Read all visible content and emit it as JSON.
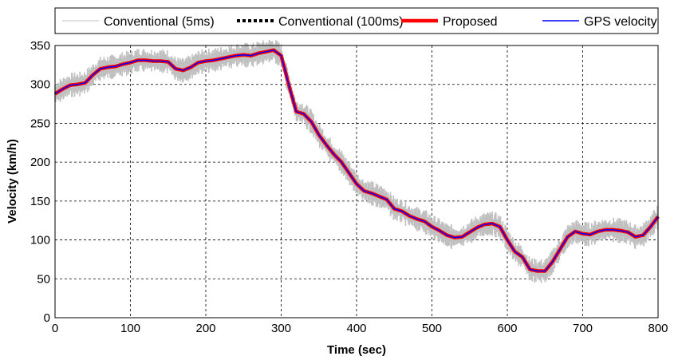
{
  "chart_data": {
    "type": "line",
    "title": "",
    "xlabel": "Time (sec)",
    "ylabel": "Velocity (km/h)",
    "xlim": [
      0,
      800
    ],
    "ylim": [
      0,
      350
    ],
    "x_ticks": [
      "0",
      "100",
      "200",
      "300",
      "400",
      "500",
      "600",
      "700",
      "800"
    ],
    "y_ticks": [
      "0",
      "50",
      "100",
      "150",
      "200",
      "250",
      "300",
      "350"
    ],
    "x_tick_values": [
      0,
      100,
      200,
      300,
      400,
      500,
      600,
      700,
      800
    ],
    "y_tick_values": [
      0,
      50,
      100,
      150,
      200,
      250,
      300,
      350
    ],
    "grid": true,
    "legend_position": "top",
    "x": [
      0,
      10,
      20,
      30,
      40,
      50,
      60,
      70,
      80,
      90,
      100,
      110,
      120,
      130,
      140,
      150,
      160,
      170,
      180,
      190,
      200,
      210,
      220,
      230,
      240,
      250,
      260,
      270,
      280,
      290,
      300,
      310,
      320,
      330,
      340,
      350,
      360,
      370,
      380,
      390,
      400,
      410,
      420,
      430,
      440,
      450,
      460,
      470,
      480,
      490,
      500,
      510,
      520,
      530,
      540,
      550,
      560,
      570,
      580,
      590,
      600,
      610,
      620,
      630,
      640,
      650,
      660,
      670,
      680,
      690,
      700,
      710,
      720,
      730,
      740,
      750,
      760,
      770,
      780,
      790,
      800
    ],
    "series": [
      {
        "name": "Conventional (5ms)",
        "color": "#c0c0c0",
        "style": "thin-noisy",
        "values": [
          288,
          294,
          299,
          300,
          302,
          312,
          320,
          322,
          323,
          326,
          328,
          331,
          331,
          330,
          330,
          329,
          320,
          318,
          322,
          328,
          330,
          331,
          333,
          335,
          337,
          338,
          337,
          340,
          342,
          344,
          337,
          300,
          265,
          262,
          252,
          235,
          222,
          210,
          200,
          186,
          172,
          163,
          160,
          156,
          152,
          140,
          137,
          131,
          127,
          124,
          117,
          112,
          106,
          103,
          104,
          110,
          116,
          120,
          121,
          117,
          100,
          85,
          78,
          62,
          60,
          60,
          72,
          88,
          104,
          111,
          108,
          107,
          111,
          113,
          113,
          112,
          110,
          104,
          106,
          117,
          130
        ]
      },
      {
        "name": "Conventional (100ms)",
        "color": "#000000",
        "style": "dotted",
        "values": [
          288,
          294,
          299,
          300,
          302,
          312,
          320,
          322,
          323,
          326,
          328,
          331,
          331,
          330,
          330,
          329,
          320,
          318,
          322,
          328,
          330,
          331,
          333,
          335,
          337,
          338,
          337,
          340,
          342,
          344,
          337,
          300,
          265,
          262,
          252,
          235,
          222,
          210,
          200,
          186,
          172,
          163,
          160,
          156,
          152,
          140,
          137,
          131,
          127,
          124,
          117,
          112,
          106,
          103,
          104,
          110,
          116,
          120,
          121,
          117,
          100,
          85,
          78,
          62,
          60,
          60,
          72,
          88,
          104,
          111,
          108,
          107,
          111,
          113,
          113,
          112,
          110,
          104,
          106,
          117,
          130
        ]
      },
      {
        "name": "Proposed",
        "color": "#ff0000",
        "style": "thick",
        "values": [
          288,
          294,
          299,
          300,
          302,
          312,
          320,
          322,
          323,
          326,
          328,
          331,
          331,
          330,
          330,
          329,
          320,
          318,
          322,
          328,
          330,
          331,
          333,
          335,
          337,
          338,
          337,
          340,
          342,
          344,
          337,
          300,
          265,
          262,
          252,
          235,
          222,
          210,
          200,
          186,
          172,
          163,
          160,
          156,
          152,
          140,
          137,
          131,
          127,
          124,
          117,
          112,
          106,
          103,
          104,
          110,
          116,
          120,
          121,
          117,
          100,
          85,
          78,
          62,
          60,
          60,
          72,
          88,
          104,
          111,
          108,
          107,
          111,
          113,
          113,
          112,
          110,
          104,
          106,
          117,
          130
        ]
      },
      {
        "name": "GPS velocity",
        "color": "#0000ff",
        "style": "thin",
        "values": [
          288,
          294,
          299,
          300,
          302,
          312,
          320,
          322,
          323,
          326,
          328,
          331,
          331,
          330,
          330,
          329,
          320,
          318,
          322,
          328,
          330,
          331,
          333,
          335,
          337,
          338,
          337,
          340,
          342,
          344,
          337,
          300,
          265,
          262,
          252,
          235,
          222,
          210,
          200,
          186,
          172,
          163,
          160,
          156,
          152,
          140,
          137,
          131,
          127,
          124,
          117,
          112,
          106,
          103,
          104,
          110,
          116,
          120,
          121,
          117,
          100,
          85,
          78,
          62,
          60,
          60,
          72,
          88,
          104,
          111,
          108,
          107,
          111,
          113,
          113,
          112,
          110,
          104,
          106,
          117,
          130
        ]
      }
    ]
  }
}
